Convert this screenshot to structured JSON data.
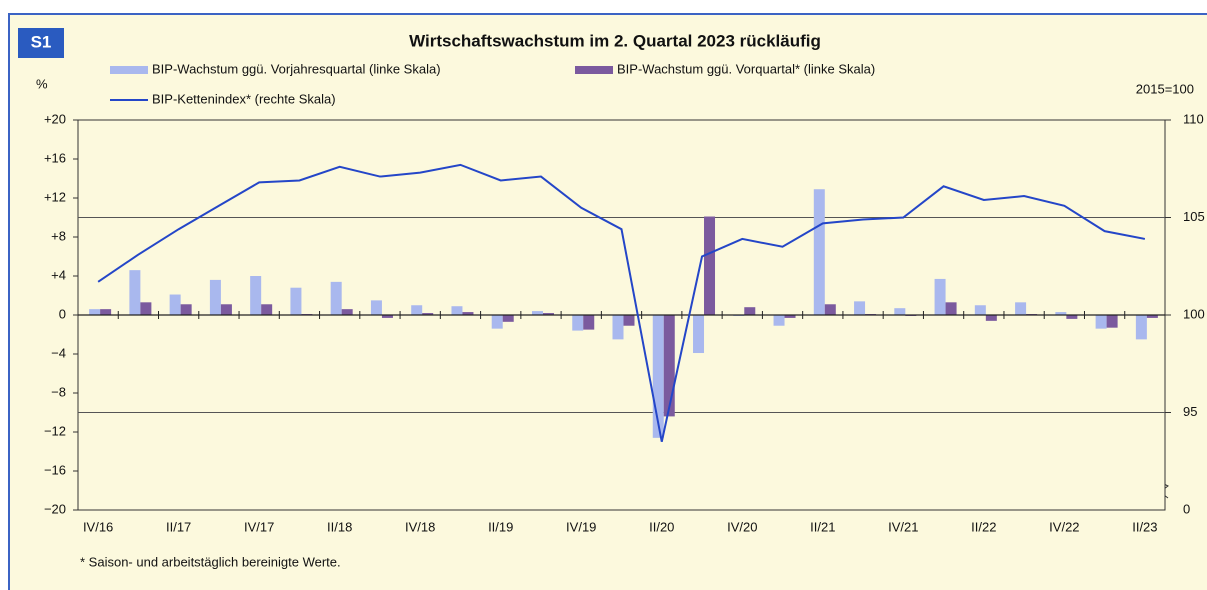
{
  "chart_data": {
    "type": "bar_line",
    "badge": "S1",
    "title": "Wirtschaftswachstum im 2. Quartal 2023 rückläufig",
    "ylabel": "%",
    "y2label": "2015=100",
    "footnote": "* Saison- und arbeitstäglich bereinigte Werte.",
    "categories": [
      "IV/16",
      null,
      "II/17",
      null,
      "IV/17",
      null,
      "II/18",
      null,
      "IV/18",
      null,
      "II/19",
      null,
      "IV/19",
      null,
      "II/20",
      null,
      "IV/20",
      null,
      "II/21",
      null,
      "IV/21",
      null,
      "II/22",
      null,
      "IV/22",
      null,
      "II/23"
    ],
    "series": [
      {
        "name": "BIP-Wachstum ggü. Vorjahresquartal (linke Skala)",
        "kind": "bar",
        "color": "#a9b8ee",
        "axis": "y",
        "values": [
          0.6,
          4.6,
          2.1,
          3.6,
          4.0,
          2.8,
          3.4,
          1.5,
          1.0,
          0.9,
          -1.4,
          0.4,
          -1.6,
          -2.5,
          -12.6,
          -3.9,
          -0.1,
          -1.1,
          12.9,
          1.4,
          0.7,
          3.7,
          1.0,
          1.3,
          0.3,
          -1.4,
          -2.5
        ]
      },
      {
        "name": "BIP-Wachstum ggü. Vorquartal* (linke Skala)",
        "kind": "bar",
        "color": "#7b5a9e",
        "axis": "y",
        "values": [
          0.6,
          1.3,
          1.1,
          1.1,
          1.1,
          0.1,
          0.6,
          -0.3,
          0.2,
          0.3,
          -0.7,
          0.2,
          -1.5,
          -1.1,
          -10.4,
          10.1,
          0.8,
          -0.3,
          1.1,
          0.1,
          -0.1,
          1.3,
          -0.6,
          0.1,
          -0.4,
          -1.3,
          -0.3
        ]
      },
      {
        "name": "BIP-Kettenindex* (rechte Skala)",
        "kind": "line",
        "color": "#2446c8",
        "axis": "y2",
        "values": [
          101.7,
          103.1,
          104.4,
          105.6,
          106.8,
          106.9,
          107.6,
          107.1,
          107.3,
          107.7,
          106.9,
          107.1,
          105.5,
          104.4,
          93.5,
          103.0,
          103.9,
          103.5,
          104.7,
          104.9,
          105.0,
          106.6,
          105.9,
          106.1,
          105.6,
          104.3,
          103.9
        ]
      }
    ],
    "ylim": [
      -20,
      20
    ],
    "yticks": [
      {
        "value": 20,
        "label": "+20"
      },
      {
        "value": 16,
        "label": "+16"
      },
      {
        "value": 12,
        "label": "+12"
      },
      {
        "value": 8,
        "label": "+8"
      },
      {
        "value": 4,
        "label": "+4"
      },
      0,
      {
        "value": -4,
        "label": "−4"
      },
      {
        "value": -8,
        "label": "−8"
      },
      {
        "value": -12,
        "label": "−12"
      },
      {
        "value": -16,
        "label": "−16"
      },
      {
        "value": -20,
        "label": "−20"
      }
    ],
    "y2lim": [
      90,
      110
    ],
    "y2ticks": [
      95,
      100,
      105,
      110
    ],
    "y2_break_label": "0",
    "grid": true
  }
}
